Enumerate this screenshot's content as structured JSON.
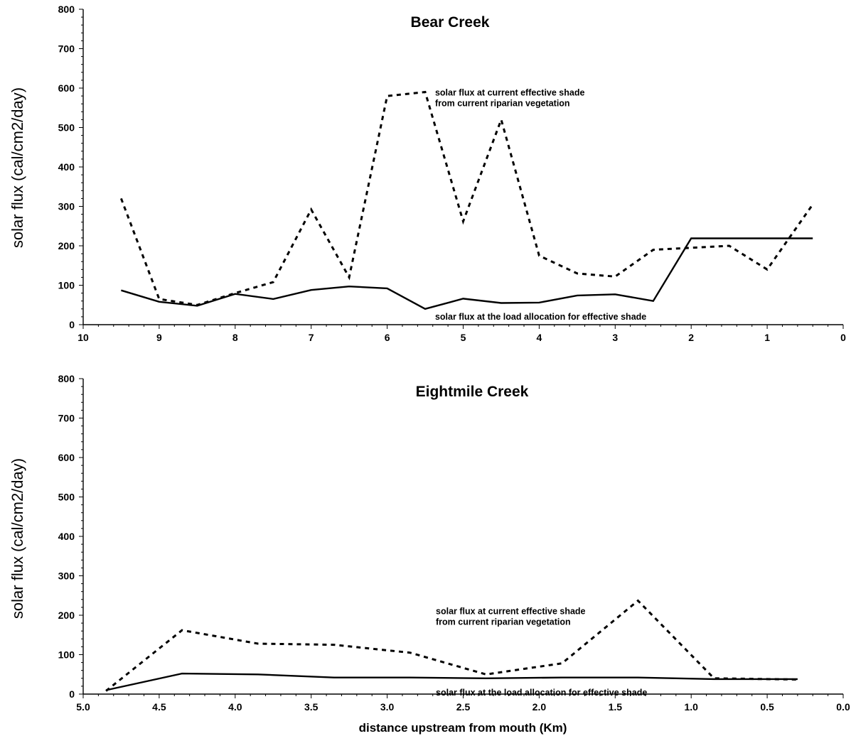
{
  "chart_data": [
    {
      "type": "line",
      "title": "Bear Creek",
      "xlabel": "",
      "ylabel": "solar flux (cal/cm2/day)",
      "xlim": [
        10,
        0
      ],
      "ylim": [
        0,
        800
      ],
      "x_reversed": true,
      "x_ticks": [
        10,
        9,
        8,
        7,
        6,
        5,
        4,
        3,
        2,
        1,
        0
      ],
      "x_tick_labels": [
        "10",
        "9",
        "8",
        "7",
        "6",
        "5",
        "4",
        "3",
        "2",
        "1",
        "0"
      ],
      "y_ticks": [
        0,
        100,
        200,
        300,
        400,
        500,
        600,
        700,
        800
      ],
      "y_tick_labels": [
        "0",
        "100",
        "200",
        "300",
        "400",
        "500",
        "600",
        "700",
        "800"
      ],
      "grid": false,
      "series": [
        {
          "style": "dashed",
          "color": "#000000",
          "x": [
            9.5,
            9.0,
            8.5,
            8.0,
            7.5,
            7.0,
            6.5,
            6.0,
            5.5,
            5.0,
            4.5,
            4.0,
            3.5,
            3.0,
            2.5,
            2.0,
            1.5,
            1.0,
            0.4
          ],
          "y": [
            320,
            65,
            50,
            80,
            108,
            292,
            120,
            580,
            590,
            262,
            520,
            175,
            130,
            122,
            190,
            195,
            200,
            140,
            305
          ]
        },
        {
          "style": "solid",
          "color": "#000000",
          "x": [
            9.5,
            9.0,
            8.5,
            8.0,
            7.5,
            7.0,
            6.5,
            6.0,
            5.5,
            5.0,
            4.5,
            4.0,
            3.5,
            3.0,
            2.5,
            2.0,
            1.5,
            1.0,
            0.4
          ],
          "y": [
            87,
            58,
            48,
            78,
            65,
            88,
            97,
            92,
            40,
            66,
            55,
            56,
            74,
            77,
            60,
            219,
            219,
            219,
            219
          ]
        }
      ],
      "annotations": [
        {
          "lines": [
            "solar flux at current effective shade",
            "from current riparian vegetation"
          ],
          "x": 5.37,
          "y": 590
        },
        {
          "lines": [
            "solar flux at the load allocation for effective shade"
          ],
          "x": 5.37,
          "y": 22
        }
      ]
    },
    {
      "type": "line",
      "title": "Eightmile Creek",
      "xlabel": "distance upstream from mouth (Km)",
      "ylabel": "solar flux (cal/cm2/day)",
      "xlim": [
        5.0,
        0.0
      ],
      "ylim": [
        0,
        800
      ],
      "x_reversed": true,
      "x_ticks": [
        5.0,
        4.5,
        4.0,
        3.5,
        3.0,
        2.5,
        2.0,
        1.5,
        1.0,
        0.5,
        0.0
      ],
      "x_tick_labels": [
        "5.0",
        "4.5",
        "4.0",
        "3.5",
        "3.0",
        "2.5",
        "2.0",
        "1.5",
        "1.0",
        "0.5",
        "0.0"
      ],
      "y_ticks": [
        0,
        100,
        200,
        300,
        400,
        500,
        600,
        700,
        800
      ],
      "y_tick_labels": [
        "0",
        "100",
        "200",
        "300",
        "400",
        "500",
        "600",
        "700",
        "800"
      ],
      "grid": false,
      "series": [
        {
          "style": "dashed",
          "color": "#000000",
          "x": [
            4.85,
            4.35,
            3.85,
            3.35,
            2.85,
            2.35,
            1.85,
            1.35,
            0.85,
            0.3
          ],
          "y": [
            8,
            162,
            128,
            125,
            105,
            50,
            78,
            237,
            40,
            37
          ]
        },
        {
          "style": "solid",
          "color": "#000000",
          "x": [
            4.85,
            4.35,
            3.85,
            3.35,
            2.85,
            2.35,
            1.85,
            1.35,
            0.85,
            0.3
          ],
          "y": [
            10,
            52,
            50,
            42,
            42,
            40,
            42,
            42,
            38,
            38
          ]
        }
      ],
      "annotations": [
        {
          "lines": [
            "solar flux at current effective shade",
            "from current riparian vegetation"
          ],
          "x": 2.68,
          "y": 212
        },
        {
          "lines": [
            "solar flux at the load allocation for effective shade"
          ],
          "x": 2.68,
          "y": 5
        }
      ]
    }
  ]
}
